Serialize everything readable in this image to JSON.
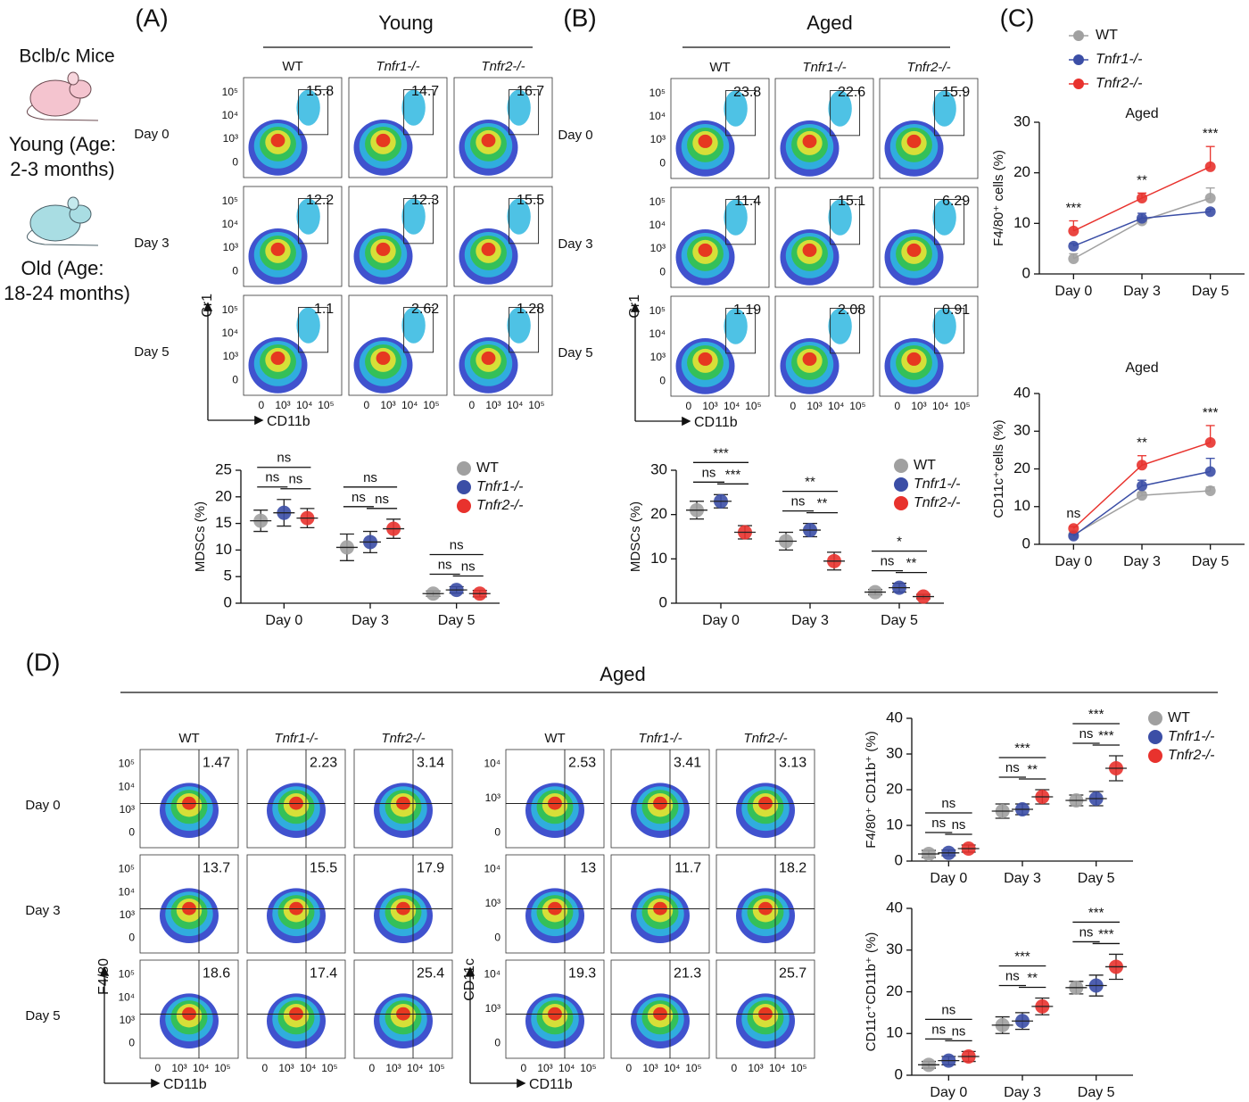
{
  "figure": {
    "panel_labels": [
      "(A)",
      "(B)",
      "(C)",
      "(D)"
    ],
    "mice": {
      "strain": "Bclb/c Mice",
      "young": [
        "Young (Age:",
        "2-3 months)"
      ],
      "old": [
        "Old (Age:",
        "18-24 months)"
      ]
    },
    "titles": [
      "Young",
      "Aged",
      "Aged"
    ],
    "flow": [
      {
        "columns": [
          "WT",
          "Tnfr1-/-",
          "Tnfr2-/-"
        ],
        "rows": [
          "Day 0",
          "Day 3",
          "Day 5"
        ],
        "y_label": "Gr1",
        "x_label": "CD11b",
        "yticks": [
          "10⁵",
          "10⁴",
          "10³",
          "0"
        ],
        "xticks": [
          "0",
          "10³",
          "10⁴",
          "10⁵"
        ],
        "values": [
          [
            15.8,
            14.7,
            16.7
          ],
          [
            12.2,
            12.3,
            15.5
          ],
          [
            1.1,
            2.62,
            1.28
          ]
        ]
      },
      {
        "columns": [
          "WT",
          "Tnfr1-/-",
          "Tnfr2-/-"
        ],
        "rows": [
          "Day 0",
          "Day 3",
          "Day 5"
        ],
        "y_label": "Gr1",
        "x_label": "CD11b",
        "yticks": [
          "10⁵",
          "10⁴",
          "10³",
          "0"
        ],
        "xticks": [
          "0",
          "10³",
          "10⁴",
          "10⁵"
        ],
        "values": [
          [
            23.8,
            22.6,
            15.9
          ],
          [
            11.4,
            15.1,
            6.29
          ],
          [
            1.19,
            2.08,
            0.91
          ]
        ]
      },
      {
        "columns": [
          "WT",
          "Tnfr1-/-",
          "Tnfr2-/-"
        ],
        "rows": [
          "Day 0",
          "Day 3",
          "Day 5"
        ],
        "y_label": "F4/80",
        "x_label": "CD11b",
        "yticks": [
          "10⁵",
          "10⁴",
          "10³",
          "0"
        ],
        "xticks": [
          "0",
          "10³",
          "10⁴",
          "10⁵"
        ],
        "values": [
          [
            1.47,
            2.23,
            3.14
          ],
          [
            13.7,
            15.5,
            17.9
          ],
          [
            18.6,
            17.4,
            25.4
          ]
        ]
      },
      {
        "columns": [
          "WT",
          "Tnfr1-/-",
          "Tnfr2-/-"
        ],
        "y_label": "CD11c",
        "x_label": "CD11b",
        "yticks": [
          "10⁴",
          "10³",
          "0"
        ],
        "xticks": [
          "0",
          "10³",
          "10⁴",
          "10⁵"
        ],
        "values": [
          [
            2.53,
            3.41,
            3.13
          ],
          [
            13,
            11.7,
            18.2
          ],
          [
            19.3,
            21.3,
            25.7
          ]
        ]
      }
    ]
  },
  "chart_data": [
    {
      "type": "dot",
      "y_label": "MDSCs (%)",
      "categories": [
        "Day 0",
        "Day 3",
        "Day 5"
      ],
      "series": [
        {
          "name": "WT",
          "color": "#a0a0a0",
          "values": [
            15.5,
            10.5,
            1.8
          ],
          "errors": [
            2,
            2.5,
            0.5
          ]
        },
        {
          "name": "Tnfr1-/-",
          "color": "#3b4ea6",
          "values": [
            17,
            11.5,
            2.5
          ],
          "errors": [
            2.5,
            2,
            0.6
          ]
        },
        {
          "name": "Tnfr2-/-",
          "color": "#e8322d",
          "values": [
            16,
            14,
            1.8
          ],
          "errors": [
            1.8,
            1.8,
            0.6
          ]
        }
      ],
      "ylim": [
        0,
        25
      ],
      "yticks": [
        0,
        5,
        10,
        15,
        20,
        25
      ],
      "annotations": [
        [
          "ns",
          "ns",
          "ns"
        ],
        [
          "ns",
          "ns",
          "ns"
        ],
        [
          "ns",
          "ns",
          "ns"
        ]
      ]
    },
    {
      "type": "dot",
      "y_label": "MDSCs (%)",
      "categories": [
        "Day 0",
        "Day 3",
        "Day 5"
      ],
      "series": [
        {
          "name": "WT",
          "color": "#a0a0a0",
          "values": [
            21,
            14,
            2.5
          ],
          "errors": [
            2,
            2,
            0.6
          ]
        },
        {
          "name": "Tnfr1-/-",
          "color": "#3b4ea6",
          "values": [
            23,
            16.5,
            3.5
          ],
          "errors": [
            1.5,
            1.5,
            1
          ]
        },
        {
          "name": "Tnfr2-/-",
          "color": "#e8322d",
          "values": [
            16,
            9.5,
            1.5
          ],
          "errors": [
            1.5,
            2,
            0.5
          ]
        }
      ],
      "ylim": [
        0,
        30
      ],
      "yticks": [
        0,
        10,
        20,
        30
      ],
      "annotations": [
        [
          "***",
          "ns",
          "***"
        ],
        [
          "**",
          "ns",
          "**"
        ],
        [
          "*",
          "ns",
          "**"
        ]
      ]
    },
    {
      "type": "line",
      "title": "Aged",
      "y_label": "F4/80⁺ cells (%)",
      "categories": [
        "Day 0",
        "Day 3",
        "Day 5"
      ],
      "series": [
        {
          "name": "WT",
          "color": "#a0a0a0",
          "values": [
            3,
            10.5,
            15
          ],
          "errors": [
            1,
            0.5,
            2
          ]
        },
        {
          "name": "Tnfr1-/-",
          "color": "#3b4ea6",
          "values": [
            5.5,
            11,
            12.3
          ],
          "errors": [
            0.5,
            1,
            0.5
          ]
        },
        {
          "name": "Tnfr2-/-",
          "color": "#e8322d",
          "values": [
            8.5,
            15,
            21.2
          ],
          "errors": [
            2,
            1,
            4
          ]
        }
      ],
      "ylim": [
        0,
        30
      ],
      "yticks": [
        0,
        10,
        20,
        30
      ],
      "annotations": [
        "***",
        "**",
        "***"
      ]
    },
    {
      "type": "line",
      "title": "Aged",
      "y_label": "CD11c⁺cells (%)",
      "categories": [
        "Day 0",
        "Day 3",
        "Day 5"
      ],
      "series": [
        {
          "name": "WT",
          "color": "#a0a0a0",
          "values": [
            2.5,
            13,
            14.2
          ],
          "errors": [
            0.5,
            0.8,
            1
          ]
        },
        {
          "name": "Tnfr1-/-",
          "color": "#3b4ea6",
          "values": [
            2.2,
            15.5,
            19.3
          ],
          "errors": [
            0.5,
            1.5,
            3.5
          ]
        },
        {
          "name": "Tnfr2-/-",
          "color": "#e8322d",
          "values": [
            4.2,
            21,
            27
          ],
          "errors": [
            0.5,
            2.5,
            4.5
          ]
        }
      ],
      "ylim": [
        0,
        40
      ],
      "yticks": [
        0,
        10,
        20,
        30,
        40
      ],
      "annotations": [
        "ns",
        "**",
        "***"
      ]
    },
    {
      "type": "dot",
      "y_label": "F4/80⁺ CD11b⁺ (%)",
      "categories": [
        "Day 0",
        "Day 3",
        "Day 5"
      ],
      "series": [
        {
          "name": "WT",
          "color": "#a0a0a0",
          "values": [
            2,
            14,
            17
          ],
          "errors": [
            1,
            2,
            1.5
          ]
        },
        {
          "name": "Tnfr1-/-",
          "color": "#3b4ea6",
          "values": [
            2.3,
            14.5,
            17.5
          ],
          "errors": [
            0.8,
            1.5,
            2
          ]
        },
        {
          "name": "Tnfr2-/-",
          "color": "#e8322d",
          "values": [
            3.5,
            18,
            26
          ],
          "errors": [
            1,
            2,
            3.5
          ]
        }
      ],
      "ylim": [
        0,
        40
      ],
      "yticks": [
        0,
        10,
        20,
        30,
        40
      ],
      "annotations": [
        [
          "ns",
          "ns",
          "ns"
        ],
        [
          "***",
          "ns",
          "**"
        ],
        [
          "***",
          "ns",
          "***"
        ]
      ]
    },
    {
      "type": "dot",
      "y_label": "CD11c⁺CD11b⁺ (%)",
      "categories": [
        "Day 0",
        "Day 3",
        "Day 5"
      ],
      "series": [
        {
          "name": "WT",
          "color": "#a0a0a0",
          "values": [
            2.5,
            12,
            21
          ],
          "errors": [
            0.8,
            2,
            1.5
          ]
        },
        {
          "name": "Tnfr1-/-",
          "color": "#3b4ea6",
          "values": [
            3.5,
            13,
            21.5
          ],
          "errors": [
            1,
            2,
            2.5
          ]
        },
        {
          "name": "Tnfr2-/-",
          "color": "#e8322d",
          "values": [
            4.5,
            16.5,
            26
          ],
          "errors": [
            1.2,
            2,
            3
          ]
        }
      ],
      "ylim": [
        0,
        40
      ],
      "yticks": [
        0,
        10,
        20,
        30,
        40
      ],
      "annotations": [
        [
          "ns",
          "ns",
          "ns"
        ],
        [
          "***",
          "ns",
          "**"
        ],
        [
          "***",
          "ns",
          "***"
        ]
      ]
    }
  ]
}
